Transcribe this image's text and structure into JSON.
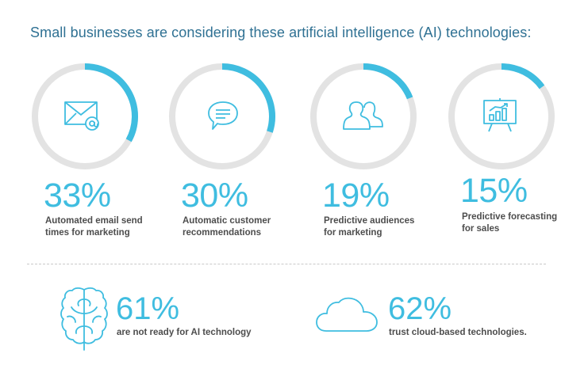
{
  "title": "Small businesses are considering these artificial intelligence (AI) technologies:",
  "colors": {
    "accent": "#3fbde0",
    "track": "#e3e3e3",
    "title": "#2f7193",
    "caption": "#4d4d4d"
  },
  "chart_data": {
    "type": "pie",
    "title": "Small businesses are considering these artificial intelligence (AI) technologies:",
    "series": [
      {
        "value": 33,
        "label": "33%",
        "caption_line1": "Automated email send",
        "caption_line2": "times for marketing",
        "icon": "email-at-icon"
      },
      {
        "value": 30,
        "label": "30%",
        "caption_line1": "Automatic customer",
        "caption_line2": "recommendations",
        "icon": "chat-bubble-icon"
      },
      {
        "value": 19,
        "label": "19%",
        "caption_line1": "Predictive audiences",
        "caption_line2": "for marketing",
        "icon": "people-icon"
      },
      {
        "value": 15,
        "label": "15%",
        "caption_line1": "Predictive forecasting",
        "caption_line2": "for sales",
        "icon": "presentation-chart-icon"
      }
    ]
  },
  "stats": [
    {
      "label": "61%",
      "caption": "are not ready for AI technology",
      "icon": "brain-icon"
    },
    {
      "label": "62%",
      "caption": "trust cloud-based technologies.",
      "icon": "cloud-icon"
    }
  ]
}
